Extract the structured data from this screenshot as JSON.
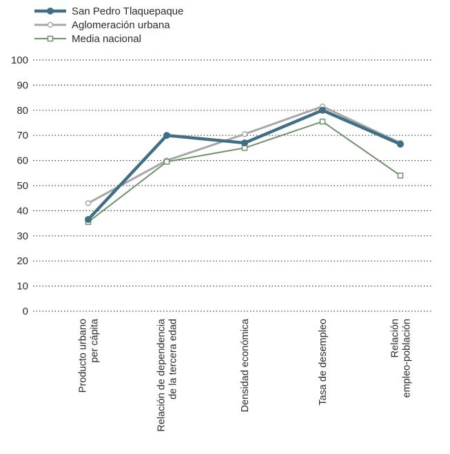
{
  "chart_data": {
    "type": "line",
    "title": "",
    "xlabel": "",
    "ylabel": "",
    "ylim": [
      0,
      100
    ],
    "yticks": [
      0,
      10,
      20,
      30,
      40,
      50,
      60,
      70,
      80,
      90,
      100
    ],
    "grid": "horizontal dotted",
    "legend_position": "top-left",
    "categories": [
      [
        "Producto urbano",
        "per cápita"
      ],
      [
        "Relación de dependencia",
        "de la tercera edad"
      ],
      [
        "Densidad económica"
      ],
      [
        "Tasa de desempleo"
      ],
      [
        "Relación",
        "empleo-población"
      ]
    ],
    "series": [
      {
        "name": "San Pedro Tlaquepaque",
        "values": [
          36.5,
          70.0,
          67.0,
          80.0,
          66.5
        ],
        "color": "#3f6f84",
        "marker": "filled-circle"
      },
      {
        "name": "Aglomeración urbana",
        "values": [
          43.0,
          60.0,
          70.5,
          81.5,
          67.0
        ],
        "color": "#a6a6a6",
        "marker": "open-circle"
      },
      {
        "name": "Media nacional",
        "values": [
          35.5,
          59.5,
          65.0,
          75.5,
          54.0
        ],
        "color": "#6e9168",
        "marker": "open-square"
      }
    ]
  }
}
